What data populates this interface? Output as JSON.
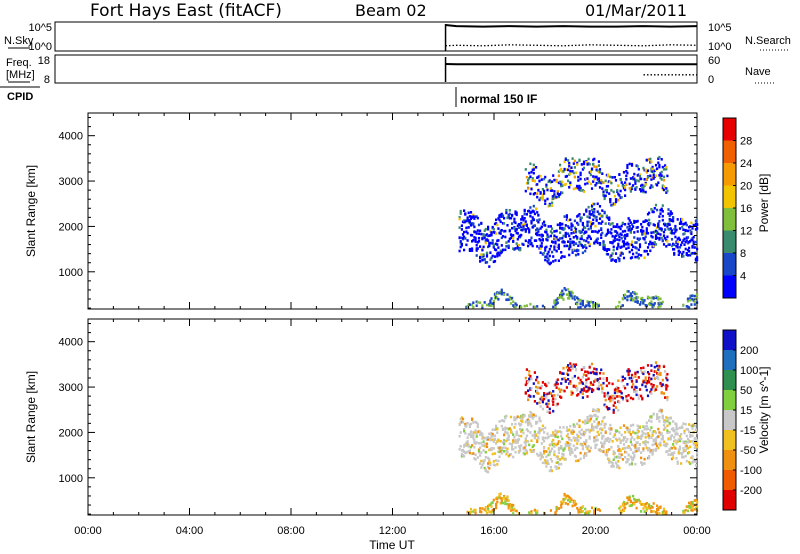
{
  "header": {
    "station": "Fort Hays East (fitACF)",
    "beam": "Beam 02",
    "date": "01/Mar/2011"
  },
  "colors": {
    "power_scale": [
      "#0000ff",
      "#1a47c8",
      "#3a8a6e",
      "#7fbf3c",
      "#f2c400",
      "#f59a00",
      "#f06000",
      "#e80000"
    ],
    "velocity_scale": [
      "#1010c8",
      "#1f6fbf",
      "#2f8f4f",
      "#7fcf3f",
      "#c8c8c8",
      "#f0c020",
      "#f09010",
      "#f05a00",
      "#e00000"
    ]
  },
  "chart_data": [
    {
      "type": "line",
      "panel": "noise",
      "left_label": "N.Sky",
      "right_label": "N.Search",
      "left_ticks": [
        "10^5",
        "10^0"
      ],
      "right_ticks": [
        "10^5",
        "10^0"
      ],
      "x": [
        14.6,
        15,
        16,
        17,
        18,
        19,
        20,
        21,
        22,
        23,
        24
      ],
      "series": [
        {
          "values": [
            5.0,
            4.8,
            4.7,
            4.8,
            4.7,
            4.8,
            4.7,
            4.7,
            4.8,
            4.7,
            4.8
          ],
          "style": "solid"
        },
        {
          "values": [
            1.0,
            1.1,
            1.0,
            1.2,
            1.1,
            1.0,
            1.2,
            1.1,
            1.0,
            1.2,
            1.1
          ],
          "style": "dotted"
        }
      ]
    },
    {
      "type": "line",
      "panel": "frequency",
      "left_label_lines": [
        "Freq.",
        "[MHz]"
      ],
      "right_label": "Nave",
      "left_ticks": [
        "18",
        "8"
      ],
      "right_ticks": [
        "60",
        "0"
      ],
      "x": [
        14.6,
        15,
        16,
        17,
        18,
        19,
        20,
        21,
        22,
        23,
        24
      ],
      "series": [
        {
          "values": [
            18.0,
            17.9,
            17.9,
            17.9,
            17.9,
            17.9,
            17.9,
            17.9,
            17.9,
            17.9,
            17.9
          ],
          "style": "solid"
        },
        {
          "values": [
            null,
            null,
            null,
            null,
            null,
            null,
            null,
            null,
            12.0,
            12.0,
            12.0
          ],
          "style": "dotted"
        }
      ]
    },
    {
      "type": "text",
      "panel": "cpid",
      "label": "CPID",
      "mode_label": "normal 150 IF",
      "start_hour": 14.6
    },
    {
      "type": "heatmap",
      "panel": "power",
      "ylabel": "Slant Range [km]",
      "xlim": [
        0,
        24
      ],
      "ylim": [
        180,
        4500
      ],
      "yticks": [
        1000,
        2000,
        3000,
        4000
      ],
      "colorbar_label": "Power [dB]",
      "colorbar_ticks": [
        "4",
        "8",
        "12",
        "16",
        "20",
        "24",
        "28"
      ],
      "data_start_hour": 14.6,
      "scatter_bands": [
        {
          "t0": 14.6,
          "t1": 24,
          "center": 1850,
          "spread": 450,
          "density": 0.85
        },
        {
          "t0": 17.2,
          "t1": 22.8,
          "center": 3050,
          "spread": 350,
          "density": 0.55
        },
        {
          "t0": 14.6,
          "t1": 24,
          "center": 300,
          "spread": 120,
          "density": 0.35
        }
      ]
    },
    {
      "type": "heatmap",
      "panel": "velocity",
      "ylabel": "Slant Range [km]",
      "xlim": [
        0,
        24
      ],
      "ylim": [
        180,
        4500
      ],
      "yticks": [
        1000,
        2000,
        3000,
        4000
      ],
      "colorbar_label": "Velocity [m s^-1]",
      "colorbar_ticks": [
        "200",
        "100",
        "50",
        "15",
        "-15",
        "-50",
        "-100",
        "-200"
      ],
      "data_start_hour": 14.6,
      "xticks": [
        "00:00",
        "04:00",
        "08:00",
        "12:00",
        "16:00",
        "20:00",
        "00:00"
      ],
      "xlabel": "Time UT"
    }
  ]
}
